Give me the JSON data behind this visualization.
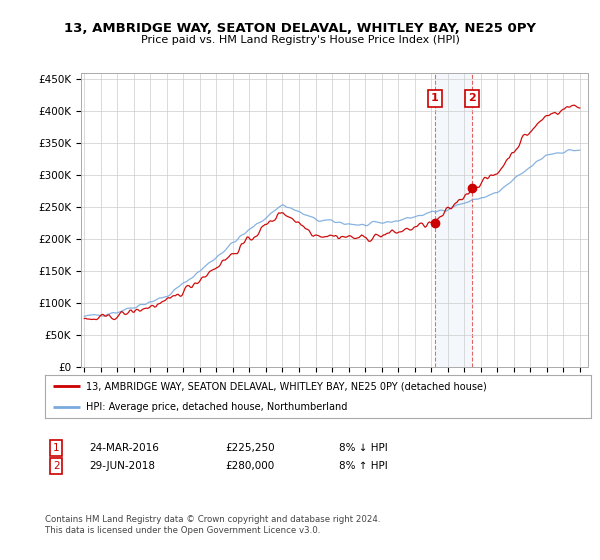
{
  "title": "13, AMBRIDGE WAY, SEATON DELAVAL, WHITLEY BAY, NE25 0PY",
  "subtitle": "Price paid vs. HM Land Registry's House Price Index (HPI)",
  "ylabel_ticks": [
    "£0",
    "£50K",
    "£100K",
    "£150K",
    "£200K",
    "£250K",
    "£300K",
    "£350K",
    "£400K",
    "£450K"
  ],
  "ytick_vals": [
    0,
    50000,
    100000,
    150000,
    200000,
    250000,
    300000,
    350000,
    400000,
    450000
  ],
  "ylim": [
    0,
    460000
  ],
  "xlim_start": 1994.8,
  "xlim_end": 2025.5,
  "bg_color": "#ffffff",
  "plot_bg": "#ffffff",
  "red_color": "#cc0000",
  "blue_color": "#7aaadd",
  "sale1_x": 2016.23,
  "sale1_y": 225250,
  "sale2_x": 2018.49,
  "sale2_y": 280000,
  "marker1_label": "1",
  "marker2_label": "2",
  "legend_line1": "13, AMBRIDGE WAY, SEATON DELAVAL, WHITLEY BAY, NE25 0PY (detached house)",
  "legend_line2": "HPI: Average price, detached house, Northumberland",
  "table_row1": [
    "1",
    "24-MAR-2016",
    "£225,250",
    "8% ↓ HPI"
  ],
  "table_row2": [
    "2",
    "29-JUN-2018",
    "£280,000",
    "8% ↑ HPI"
  ],
  "footnote": "Contains HM Land Registry data © Crown copyright and database right 2024.\nThis data is licensed under the Open Government Licence v3.0."
}
